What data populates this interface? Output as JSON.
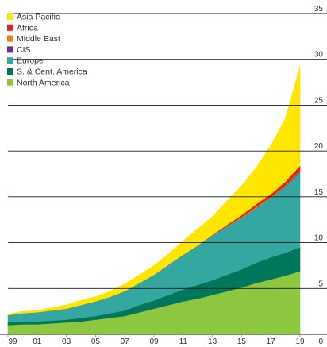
{
  "chart_data": {
    "type": "area",
    "stacked": true,
    "title": "",
    "xlabel": "",
    "ylabel": "",
    "ylim": [
      0,
      35
    ],
    "x": [
      1999,
      2000,
      2001,
      2002,
      2003,
      2004,
      2005,
      2006,
      2007,
      2008,
      2009,
      2010,
      2011,
      2012,
      2013,
      2014,
      2015,
      2016,
      2017,
      2018,
      2019
    ],
    "x_tick_labels": [
      "99",
      "01",
      "03",
      "05",
      "07",
      "09",
      "11",
      "13",
      "15",
      "17",
      "19"
    ],
    "y_ticks": [
      0,
      5,
      10,
      15,
      20,
      25,
      30,
      35
    ],
    "y_axis_position": "right",
    "grid": "horizontal",
    "legend_position": "top-left",
    "series": [
      {
        "name": "North America",
        "color": "#8dc63f",
        "values": [
          1.0,
          1.1,
          1.1,
          1.2,
          1.3,
          1.4,
          1.6,
          1.8,
          2.0,
          2.4,
          2.8,
          3.2,
          3.6,
          3.9,
          4.3,
          4.7,
          5.1,
          5.6,
          6.0,
          6.4,
          6.9
        ]
      },
      {
        "name": "S. & Cent. America",
        "color": "#00765a",
        "values": [
          0.3,
          0.3,
          0.3,
          0.3,
          0.3,
          0.4,
          0.4,
          0.5,
          0.6,
          0.8,
          0.9,
          1.1,
          1.3,
          1.5,
          1.6,
          1.8,
          2.0,
          2.2,
          2.4,
          2.5,
          2.6
        ]
      },
      {
        "name": "Europe",
        "color": "#34a8a0",
        "values": [
          0.8,
          0.9,
          1.0,
          1.1,
          1.2,
          1.4,
          1.6,
          1.8,
          2.1,
          2.4,
          2.8,
          3.3,
          3.8,
          4.3,
          4.9,
          5.3,
          5.6,
          6.0,
          6.5,
          7.2,
          8.2
        ]
      },
      {
        "name": "CIS",
        "color": "#6b2f8f",
        "values": [
          0,
          0,
          0,
          0,
          0,
          0,
          0,
          0,
          0,
          0,
          0,
          0,
          0,
          0,
          0,
          0,
          0,
          0,
          0,
          0.05,
          0.1
        ]
      },
      {
        "name": "Middle East",
        "color": "#f47b20",
        "values": [
          0,
          0,
          0,
          0,
          0,
          0,
          0,
          0,
          0,
          0,
          0,
          0,
          0,
          0,
          0,
          0.05,
          0.1,
          0.1,
          0.1,
          0.1,
          0.1
        ]
      },
      {
        "name": "Africa",
        "color": "#e2231a",
        "values": [
          0,
          0,
          0,
          0,
          0,
          0,
          0,
          0,
          0,
          0,
          0,
          0,
          0,
          0,
          0.05,
          0.1,
          0.2,
          0.3,
          0.3,
          0.4,
          0.5
        ]
      },
      {
        "name": "Asia Pacific",
        "color": "#ffe600",
        "values": [
          0.1,
          0.2,
          0.2,
          0.3,
          0.4,
          0.5,
          0.5,
          0.6,
          0.8,
          0.9,
          1.0,
          1.2,
          1.5,
          1.8,
          2.0,
          2.6,
          3.2,
          4.0,
          5.3,
          6.9,
          10.8
        ]
      }
    ],
    "legend_order": [
      "Asia Pacific",
      "Africa",
      "Middle East",
      "CIS",
      "Europe",
      "S. & Cent. America",
      "North America"
    ],
    "grid_color": "#1a1a1a",
    "axis_color": "#888888"
  }
}
